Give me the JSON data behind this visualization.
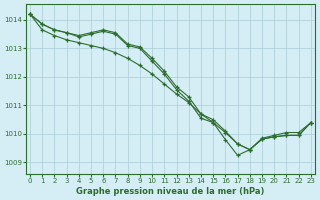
{
  "title": "Graphe pression niveau de la mer (hPa)",
  "x_ticks": [
    0,
    1,
    2,
    3,
    4,
    5,
    6,
    7,
    8,
    9,
    10,
    11,
    12,
    13,
    14,
    15,
    16,
    17,
    18,
    19,
    20,
    21,
    22,
    23
  ],
  "y_ticks": [
    1009,
    1010,
    1011,
    1012,
    1013,
    1014
  ],
  "ylim": [
    1008.6,
    1014.55
  ],
  "xlim": [
    -0.3,
    23.3
  ],
  "line_color": "#2d6e2d",
  "bg_color": "#d5eef5",
  "grid_color": "#aaccd8",
  "line1_x": [
    0,
    1,
    2,
    3,
    4,
    5,
    6,
    7,
    8,
    9,
    10,
    11,
    12,
    13,
    14,
    15,
    16,
    17,
    18,
    19,
    20,
    21,
    22,
    23
  ],
  "line1_y": [
    1014.2,
    1013.85,
    1013.65,
    1013.55,
    1013.45,
    1013.55,
    1013.65,
    1013.55,
    1013.15,
    1013.05,
    1012.65,
    1012.2,
    1011.65,
    1011.3,
    1010.7,
    1010.5,
    1010.1,
    1009.65,
    1009.45,
    1009.85,
    1009.95,
    1010.05,
    1010.05,
    1010.4
  ],
  "line2_x": [
    0,
    1,
    2,
    3,
    4,
    5,
    6,
    7,
    8,
    9,
    10,
    11,
    12,
    13,
    14,
    15,
    16,
    17,
    18,
    19,
    20,
    21,
    22,
    23
  ],
  "line2_y": [
    1014.2,
    1013.85,
    1013.65,
    1013.55,
    1013.4,
    1013.5,
    1013.6,
    1013.5,
    1013.1,
    1013.0,
    1012.55,
    1012.1,
    1011.55,
    1011.15,
    1010.55,
    1010.4,
    1009.8,
    1009.25,
    1009.45,
    1009.82,
    1009.9,
    1009.95,
    1009.95,
    1010.4
  ],
  "line3_x": [
    0,
    1,
    2,
    3,
    4,
    5,
    6,
    7,
    8,
    9,
    10,
    11,
    12,
    13,
    14,
    15,
    16,
    17,
    18,
    19,
    20,
    21,
    22,
    23
  ],
  "line3_y": [
    1014.2,
    1013.65,
    1013.45,
    1013.3,
    1013.2,
    1013.1,
    1013.0,
    1012.85,
    1012.65,
    1012.4,
    1012.1,
    1011.75,
    1011.4,
    1011.1,
    1010.7,
    1010.4,
    1010.05,
    1009.65,
    1009.45,
    1009.82,
    1009.9,
    1009.95,
    1009.95,
    1010.4
  ]
}
